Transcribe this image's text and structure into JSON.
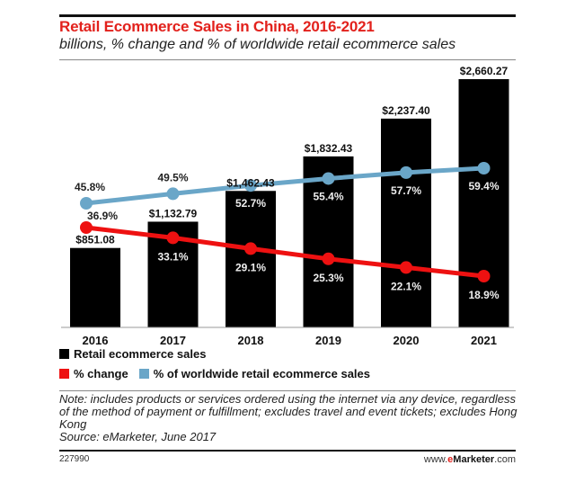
{
  "header": {
    "title": "Retail Ecommerce Sales in China, 2016-2021",
    "subtitle": "billions, % change and % of worldwide retail ecommerce sales"
  },
  "colors": {
    "title": "#e2211c",
    "bars": "#000000",
    "pct_change_line": "#ee1111",
    "worldwide_share_line": "#6aa6c8"
  },
  "chart_data": {
    "type": "bar",
    "title": "Retail Ecommerce Sales in China, 2016-2021",
    "subtitle": "billions, % change and % of worldwide retail ecommerce sales",
    "categories": [
      "2016",
      "2017",
      "2018",
      "2019",
      "2020",
      "2021"
    ],
    "series": [
      {
        "name": "Retail ecommerce sales",
        "type": "bar",
        "unit": "billions",
        "values": [
          851.08,
          1132.79,
          1462.43,
          1832.43,
          2237.4,
          2660.27
        ],
        "labels": [
          "$851.08",
          "$1,132.79",
          "$1,462.43",
          "$1,832.43",
          "$2,237.40",
          "$2,660.27"
        ]
      },
      {
        "name": "% change",
        "type": "line",
        "values": [
          36.9,
          33.1,
          29.1,
          25.3,
          22.1,
          18.9
        ],
        "labels": [
          "36.9%",
          "33.1%",
          "29.1%",
          "25.3%",
          "22.1%",
          "18.9%"
        ]
      },
      {
        "name": "% of worldwide retail ecommerce sales",
        "type": "line",
        "values": [
          45.8,
          49.5,
          52.7,
          55.4,
          57.7,
          59.4
        ],
        "labels": [
          "45.8%",
          "49.5%",
          "52.7%",
          "55.4%",
          "57.7%",
          "59.4%"
        ]
      }
    ],
    "xlabel": "",
    "ylabel": "",
    "grid": false,
    "legend_position": "bottom"
  },
  "legend": {
    "items": [
      {
        "label": "Retail ecommerce sales",
        "color": "#000000"
      },
      {
        "label": "% change",
        "color": "#ee1111"
      },
      {
        "label": "% of worldwide retail ecommerce sales",
        "color": "#6aa6c8"
      }
    ]
  },
  "footer": {
    "note": "Note: includes products or services ordered using the internet via any device, regardless of the method of payment or fulfillment; excludes travel and event tickets; excludes Hong Kong",
    "source": "Source: eMarketer, June 2017",
    "chart_id": "227990",
    "brand_prefix": "www.",
    "brand_e": "e",
    "brand_name": "Marketer",
    "brand_suffix": ".com"
  }
}
